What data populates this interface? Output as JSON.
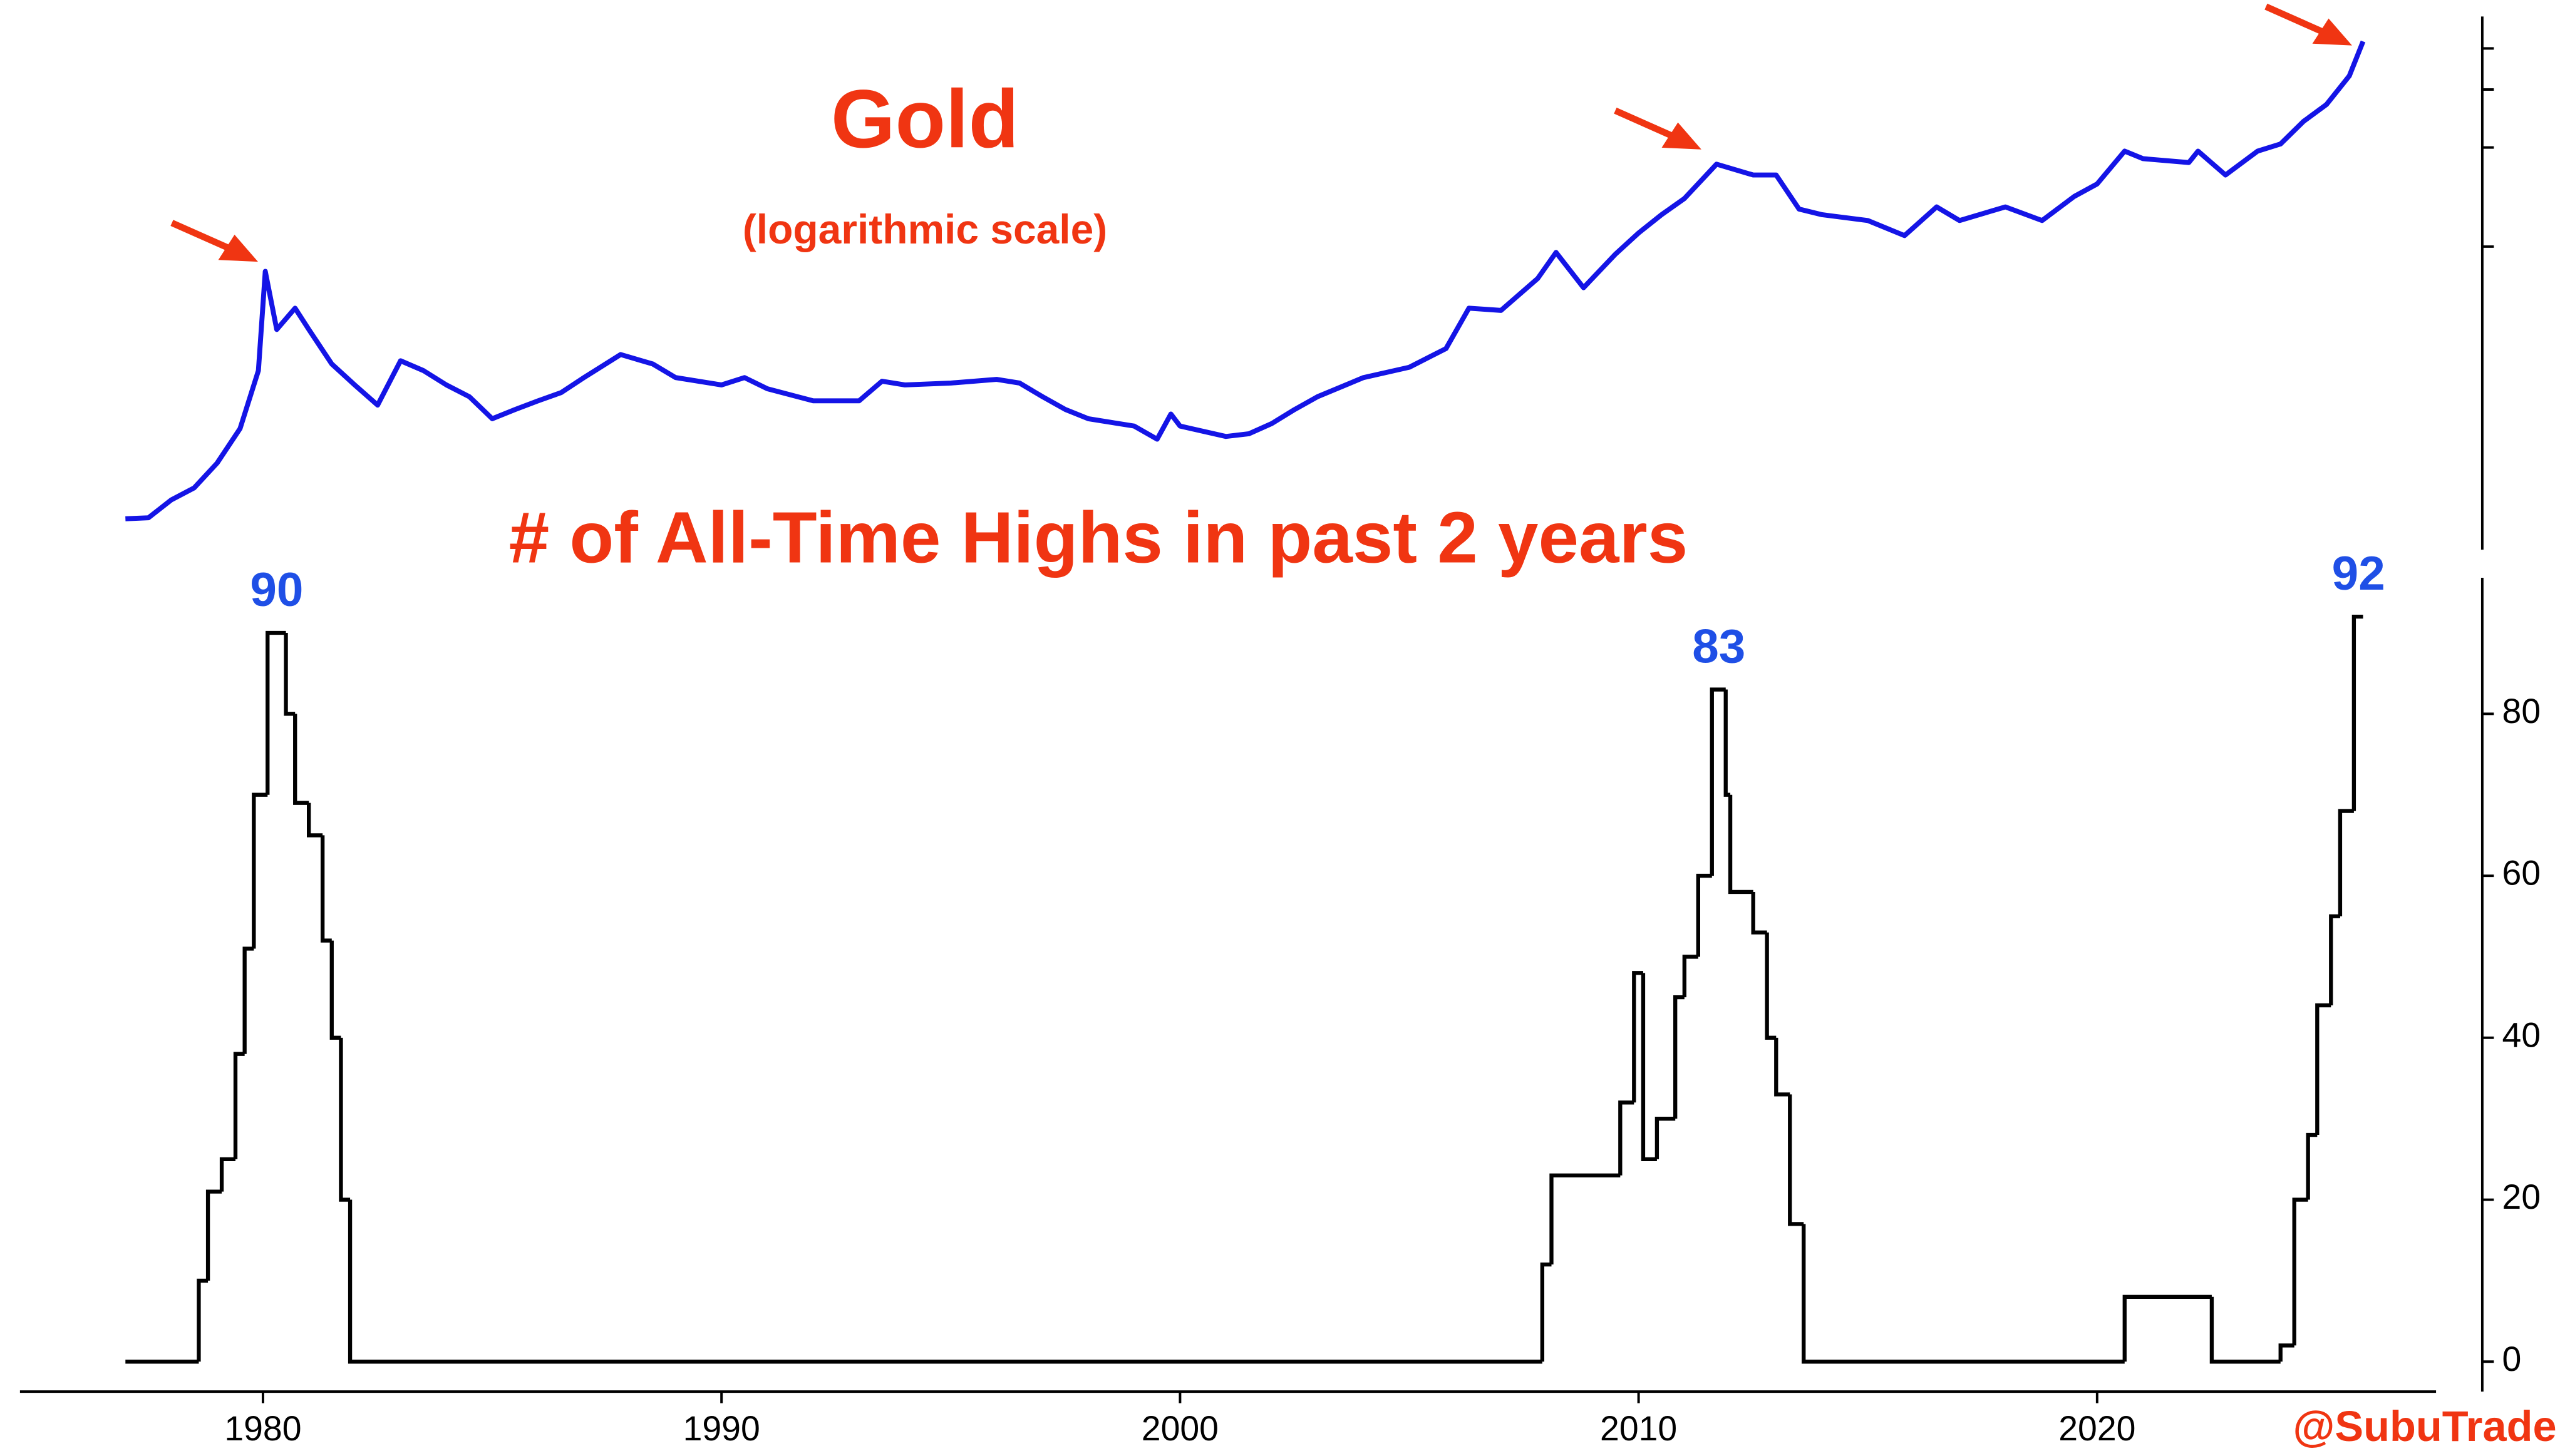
{
  "chart_data": [
    {
      "type": "line",
      "title": "Gold",
      "subtitle": "(logarithmic scale)",
      "color": "#1414e6",
      "log_scale": true,
      "xlim": [
        1974.7,
        2028.4
      ],
      "ylim": [
        120,
        5000
      ],
      "yticks": [
        1000,
        2000,
        3000,
        4000
      ],
      "x": [
        1977.0,
        1977.5,
        1978.0,
        1978.5,
        1979.0,
        1979.5,
        1979.9,
        1980.05,
        1980.3,
        1980.7,
        1981.0,
        1981.5,
        1982.0,
        1982.5,
        1983.0,
        1983.5,
        1984.0,
        1984.5,
        1985.0,
        1985.5,
        1986.0,
        1986.5,
        1987.0,
        1987.8,
        1988.5,
        1989.0,
        1990.0,
        1990.5,
        1991.0,
        1992.0,
        1993.0,
        1993.5,
        1994.0,
        1995.0,
        1996.0,
        1996.5,
        1997.0,
        1997.5,
        1998.0,
        1999.0,
        1999.5,
        1999.8,
        2000.0,
        2001.0,
        2001.5,
        2002.0,
        2002.5,
        2003.0,
        2004.0,
        2005.0,
        2005.8,
        2006.3,
        2007.0,
        2007.8,
        2008.2,
        2008.8,
        2009.5,
        2010.0,
        2010.5,
        2011.0,
        2011.7,
        2012.5,
        2013.0,
        2013.5,
        2014.0,
        2015.0,
        2015.8,
        2016.5,
        2017.0,
        2018.0,
        2018.8,
        2019.5,
        2020.0,
        2020.6,
        2021.0,
        2022.0,
        2022.2,
        2022.8,
        2023.5,
        2024.0,
        2024.5,
        2025.0,
        2025.5,
        2025.8
      ],
      "values": [
        149,
        150,
        170,
        185,
        220,
        280,
        420,
        841,
        560,
        650,
        560,
        440,
        380,
        330,
        450,
        420,
        380,
        350,
        300,
        320,
        340,
        360,
        400,
        470,
        440,
        400,
        380,
        400,
        370,
        340,
        340,
        390,
        380,
        385,
        395,
        385,
        350,
        320,
        300,
        285,
        260,
        310,
        285,
        265,
        270,
        290,
        320,
        350,
        400,
        430,
        490,
        650,
        640,
        800,
        960,
        750,
        950,
        1100,
        1250,
        1400,
        1780,
        1650,
        1650,
        1300,
        1250,
        1200,
        1080,
        1320,
        1200,
        1320,
        1200,
        1420,
        1550,
        1950,
        1850,
        1800,
        1950,
        1650,
        1950,
        2050,
        2400,
        2700,
        3300,
        4200
      ]
    },
    {
      "type": "step",
      "title": "# of All-Time Highs in past 2 years",
      "color": "#000000",
      "xlim": [
        1974.7,
        2028.4
      ],
      "ylim": [
        -3.7,
        96.8
      ],
      "yticks": [
        0,
        20,
        40,
        60,
        80
      ],
      "xticks": [
        1980,
        1990,
        2000,
        2010,
        2020
      ],
      "x": [
        1977.0,
        1978.6,
        1978.8,
        1979.1,
        1979.4,
        1979.6,
        1979.8,
        1980.1,
        1980.5,
        1980.7,
        1981.0,
        1981.3,
        1981.5,
        1981.7,
        1981.9,
        2007.9,
        2008.1,
        2009.6,
        2009.9,
        2010.1,
        2010.4,
        2010.8,
        2011.0,
        2011.3,
        2011.6,
        2011.9,
        2012.0,
        2012.5,
        2012.8,
        2013.0,
        2013.3,
        2013.6,
        2020.6,
        2022.5,
        2024.0,
        2024.3,
        2024.6,
        2024.8,
        2025.1,
        2025.3,
        2025.6,
        2025.8
      ],
      "values": [
        0,
        10,
        21,
        25,
        38,
        51,
        70,
        90,
        80,
        69,
        65,
        52,
        40,
        20,
        0,
        12,
        23,
        32,
        48,
        25,
        30,
        45,
        50,
        60,
        83,
        70,
        58,
        53,
        40,
        33,
        17,
        0,
        8,
        0,
        2,
        20,
        28,
        44,
        55,
        68,
        92,
        92
      ],
      "peak_labels": [
        90,
        83,
        92
      ],
      "peak_color": "#1f4fe6"
    }
  ],
  "credit": "@SubuTrade"
}
